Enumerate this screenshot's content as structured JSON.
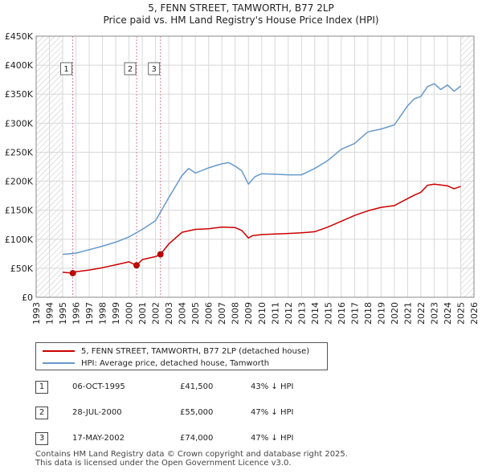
{
  "chart_data": {
    "type": "line",
    "title": "5, FENN STREET, TAMWORTH, B77 2LP",
    "subtitle": "Price paid vs. HM Land Registry's House Price Index (HPI)",
    "xlim": [
      1993,
      2026
    ],
    "ylim": [
      0,
      450000
    ],
    "x_ticks": [
      1993,
      1994,
      1995,
      1996,
      1997,
      1998,
      1999,
      2000,
      2001,
      2002,
      2003,
      2004,
      2005,
      2006,
      2007,
      2008,
      2009,
      2010,
      2011,
      2012,
      2013,
      2014,
      2015,
      2016,
      2017,
      2018,
      2019,
      2020,
      2021,
      2022,
      2023,
      2024,
      2025,
      2026
    ],
    "y_ticks": [
      {
        "value": 0,
        "label": "£0"
      },
      {
        "value": 50000,
        "label": "£50K"
      },
      {
        "value": 100000,
        "label": "£100K"
      },
      {
        "value": 150000,
        "label": "£150K"
      },
      {
        "value": 200000,
        "label": "£200K"
      },
      {
        "value": 250000,
        "label": "£250K"
      },
      {
        "value": 300000,
        "label": "£300K"
      },
      {
        "value": 350000,
        "label": "£350K"
      },
      {
        "value": 400000,
        "label": "£400K"
      },
      {
        "value": 450000,
        "label": "£450K"
      }
    ],
    "hatch_ranges": [
      [
        1993,
        1995.0
      ],
      [
        2025.0,
        2026
      ]
    ],
    "series": [
      {
        "name": "5, FENN STREET, TAMWORTH, B77 2LP (detached house)",
        "color": "#cc0000",
        "x": [
          1995.0,
          1995.76,
          1996,
          1997,
          1998,
          1999,
          2000,
          2000.57,
          2001,
          2002,
          2002.37,
          2003,
          2003.5,
          2004,
          2005,
          2006,
          2007,
          2008,
          2008.5,
          2009,
          2009.3,
          2010,
          2011,
          2012,
          2013,
          2014,
          2015,
          2016,
          2017,
          2018,
          2019,
          2020,
          2021,
          2021.5,
          2022,
          2022.5,
          2023,
          2024,
          2024.5,
          2025
        ],
        "y": [
          43000,
          41500,
          44000,
          47000,
          51000,
          56000,
          61000,
          55000,
          65000,
          70000,
          74000,
          92000,
          102000,
          112000,
          117000,
          118000,
          121000,
          120000,
          115000,
          102000,
          106000,
          108000,
          109000,
          110000,
          111000,
          113000,
          121000,
          131000,
          141000,
          149000,
          155000,
          158000,
          170000,
          176000,
          181000,
          193000,
          195000,
          192000,
          187000,
          191000
        ]
      },
      {
        "name": "HPI: Average price, detached house, Tamworth",
        "color": "#6699cc",
        "x": [
          1995.0,
          1996,
          1997,
          1998,
          1999,
          2000,
          2001,
          2002,
          2003,
          2004,
          2004.5,
          2005,
          2006,
          2007,
          2007.5,
          2008,
          2008.5,
          2009,
          2009.5,
          2010,
          2011,
          2012,
          2013,
          2014,
          2015,
          2016,
          2017,
          2018,
          2019,
          2020,
          2021,
          2021.5,
          2022,
          2022.5,
          2023,
          2023.5,
          2024,
          2024.5,
          2025
        ],
        "y": [
          74000,
          76000,
          82000,
          88000,
          95000,
          104000,
          117000,
          132000,
          172000,
          210000,
          222000,
          214000,
          223000,
          230000,
          232000,
          226000,
          218000,
          195000,
          208000,
          213000,
          212000,
          211000,
          211000,
          222000,
          236000,
          255000,
          265000,
          285000,
          290000,
          297000,
          330000,
          342000,
          346000,
          363000,
          368000,
          358000,
          366000,
          355000,
          364000
        ]
      }
    ],
    "sale_points": [
      {
        "id": "1",
        "x": 1995.76,
        "y": 41500
      },
      {
        "id": "2",
        "x": 2000.57,
        "y": 55000
      },
      {
        "id": "3",
        "x": 2002.37,
        "y": 74000
      }
    ],
    "legend": {
      "items": [
        "5, FENN STREET, TAMWORTH, B77 2LP (detached house)",
        "HPI: Average price, detached house, Tamworth"
      ]
    },
    "colors": {
      "property": "#cc0000",
      "hpi": "#6699cc",
      "marker_line": "#d08090",
      "grid": "#d8d8d8",
      "hatch": "#999999"
    }
  },
  "sales": [
    {
      "id": "1",
      "date": "06-OCT-1995",
      "price": "£41,500",
      "hpi_diff": "43% ↓ HPI"
    },
    {
      "id": "2",
      "date": "28-JUL-2000",
      "price": "£55,000",
      "hpi_diff": "47% ↓ HPI"
    },
    {
      "id": "3",
      "date": "17-MAY-2002",
      "price": "£74,000",
      "hpi_diff": "47% ↓ HPI"
    }
  ],
  "footer": {
    "line1": "Contains HM Land Registry data © Crown copyright and database right 2025.",
    "line2": "This data is licensed under the Open Government Licence v3.0."
  }
}
